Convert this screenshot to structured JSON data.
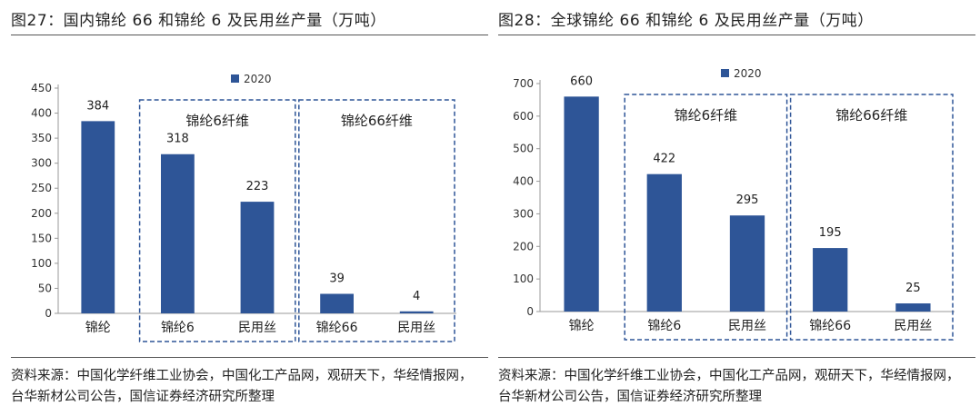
{
  "figures": [
    {
      "title": "图27：国内锦纶 66 和锦纶 6 及民用丝产量（万吨）",
      "source": "资料来源：中国化学纤维工业协会，中国化工产品网，观研天下，华经情报网，台华新材公司公告，国信证券经济研究所整理"
    },
    {
      "title": "图28：全球锦纶 66 和锦纶 6 及民用丝产量（万吨）",
      "source": "资料来源：中国化学纤维工业协会，中国化工产品网，观研天下，华经情报网，台华新材公司公告，国信证券经济研究所整理"
    }
  ],
  "chart_data": [
    {
      "type": "bar",
      "series": [
        {
          "name": "2020",
          "values": [
            384,
            318,
            223,
            39,
            4
          ]
        }
      ],
      "categories": [
        "锦纶",
        "锦纶6",
        "民用丝",
        "锦纶66",
        "民用丝"
      ],
      "value_labels": [
        "384",
        "318",
        "223",
        "39",
        "4"
      ],
      "yticks": [
        0,
        50,
        100,
        150,
        200,
        250,
        300,
        350,
        400,
        450
      ],
      "ylim": [
        0,
        450
      ],
      "groups": [
        {
          "label": "锦纶6纤维",
          "categories": [
            1,
            2
          ]
        },
        {
          "label": "锦纶66纤维",
          "categories": [
            3,
            4
          ]
        }
      ],
      "legend": "top-center",
      "color": "#2e5597"
    },
    {
      "type": "bar",
      "series": [
        {
          "name": "2020",
          "values": [
            660,
            422,
            295,
            195,
            25
          ]
        }
      ],
      "categories": [
        "锦纶",
        "锦纶6",
        "民用丝",
        "锦纶66",
        "民用丝"
      ],
      "value_labels": [
        "660",
        "422",
        "295",
        "195",
        "25"
      ],
      "yticks": [
        0,
        100,
        200,
        300,
        400,
        500,
        600,
        700
      ],
      "ylim": [
        0,
        700
      ],
      "groups": [
        {
          "label": "锦纶6纤维",
          "categories": [
            1,
            2
          ]
        },
        {
          "label": "锦纶66纤维",
          "categories": [
            3,
            4
          ]
        }
      ],
      "legend": "top-center",
      "color": "#2e5597"
    }
  ]
}
